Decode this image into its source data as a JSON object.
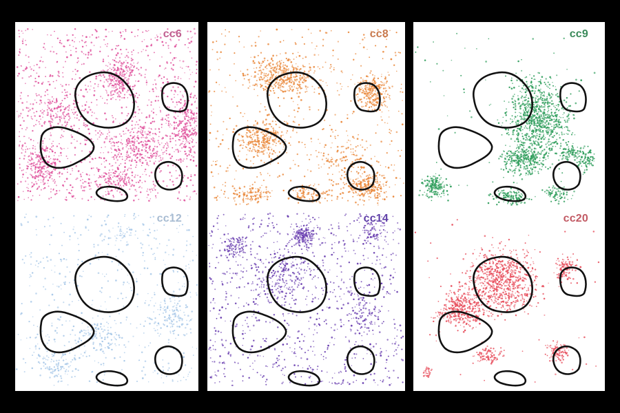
{
  "figure": {
    "background": "#000000",
    "outline_color": "#111111",
    "panels": [
      {
        "label": "cc6",
        "color": "#e0559e",
        "label_color": "#c06090",
        "density": "dense"
      },
      {
        "label": "cc8",
        "color": "#ea8a3e",
        "label_color": "#c87a4e",
        "density": "dense"
      },
      {
        "label": "cc9",
        "color": "#2e9d5b",
        "label_color": "#3a8a5a",
        "density": "dense"
      },
      {
        "label": "cc12",
        "color": "#a8c8e8",
        "label_color": "#a8bcd2",
        "density": "sparse"
      },
      {
        "label": "cc14",
        "color": "#6a3fb0",
        "label_color": "#6040a8",
        "density": "medium"
      },
      {
        "label": "cc20",
        "color": "#e8505e",
        "label_color": "#c25a64",
        "density": "medium"
      }
    ]
  }
}
